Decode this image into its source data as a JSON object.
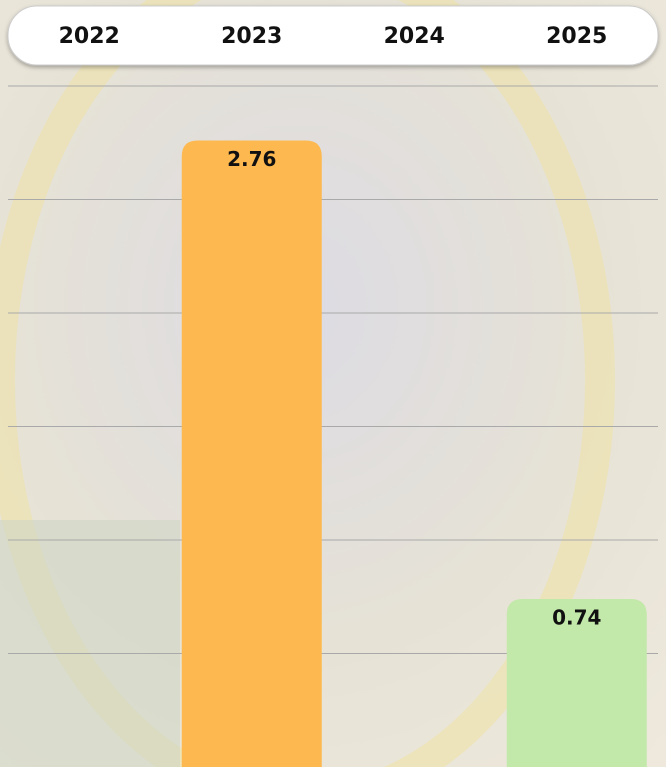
{
  "chart_data": {
    "type": "bar",
    "categories": [
      "2022",
      "2023",
      "2024",
      "2025"
    ],
    "values": [
      null,
      2.76,
      null,
      0.74
    ],
    "colors": [
      "#fdb94f",
      "#fdb94f",
      "#c2e9a9",
      "#c2e9a9"
    ],
    "ylim": [
      0,
      3
    ],
    "yticks": [
      0.5,
      1,
      1.5,
      2,
      2.5,
      3
    ],
    "grid": true
  }
}
